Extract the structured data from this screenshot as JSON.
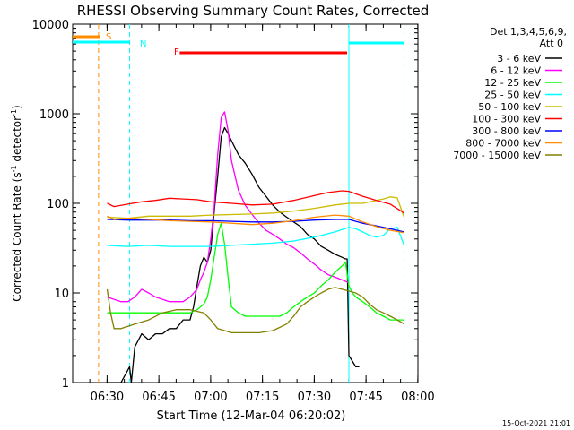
{
  "chart_data": {
    "type": "line",
    "title": "RHESSI Observing Summary Count Rates, Corrected",
    "xlabel": "Start Time (12-Mar-04 06:20:02)",
    "ylabel_parts": [
      "Corrected Count Rate (s",
      "-1",
      " detector",
      "-1",
      ")"
    ],
    "yscale": "log",
    "ylim": [
      1,
      10000
    ],
    "yticks": [
      1,
      10,
      100,
      1000,
      10000
    ],
    "ytick_labels": [
      "1",
      "10",
      "100",
      "1000",
      "10000"
    ],
    "x_unit": "minutes after 06:20:02",
    "xlim": [
      0,
      100
    ],
    "xticks": [
      9.97,
      24.97,
      39.97,
      54.97,
      69.97,
      84.97,
      99.97
    ],
    "xtick_labels": [
      "06:30",
      "06:45",
      "07:00",
      "07:15",
      "07:30",
      "07:45",
      "08:00"
    ],
    "legend": {
      "position": "top-right",
      "header1": "Det 1,3,4,5,6,9,",
      "header2": "Att 0"
    },
    "timestamp": "15-Oct-2021 21:01",
    "flags": [
      {
        "label": "S",
        "color": "#ff8c00",
        "start": 0,
        "end": 8
      },
      {
        "label": "N",
        "color": "#00ffff",
        "start": 0,
        "end": 16.5
      },
      {
        "label": "F",
        "color": "#ff0000",
        "start": 31,
        "end": 79.5
      },
      {
        "label": "",
        "color": "#00ffff",
        "start": 80,
        "end": 96
      }
    ],
    "vlines": [
      {
        "x": 7.5,
        "color": "#ff8c00",
        "style": "dashed"
      },
      {
        "x": 16.5,
        "color": "#00ffff",
        "style": "dashed"
      },
      {
        "x": 80,
        "color": "#00ffff",
        "style": "solid"
      },
      {
        "x": 96,
        "color": "#00ffff",
        "style": "dashed"
      }
    ],
    "series": [
      {
        "name": "3 - 6 keV",
        "color": "#000000",
        "x": [
          10,
          14,
          16.5,
          17,
          18,
          20,
          22,
          24,
          26,
          28,
          30,
          32,
          34,
          35,
          36,
          37,
          38,
          39,
          40,
          41,
          42,
          43,
          44,
          45,
          46,
          48,
          50,
          52,
          54,
          56,
          58,
          60,
          62,
          64,
          66,
          68,
          70,
          72,
          74,
          76,
          78,
          79,
          79.5,
          80,
          82,
          83,
          83.5
        ],
        "values": [
          1,
          1,
          1.5,
          1,
          2.5,
          3.5,
          3,
          3.5,
          3.5,
          4,
          4,
          5,
          5,
          7,
          12,
          20,
          25,
          22,
          30,
          80,
          200,
          550,
          700,
          600,
          500,
          350,
          280,
          210,
          150,
          120,
          95,
          80,
          70,
          62,
          55,
          45,
          40,
          33,
          30,
          27,
          25,
          24,
          24,
          2,
          1.5,
          1.5,
          null
        ]
      },
      {
        "name": "6 - 12 keV",
        "color": "#ff00ff",
        "x": [
          10,
          14,
          16,
          18,
          20,
          22,
          24,
          26,
          28,
          30,
          32,
          34,
          36,
          37,
          38,
          39,
          40,
          41,
          42,
          43,
          44,
          45,
          46,
          48,
          50,
          52,
          54,
          56,
          58,
          60,
          62,
          64,
          66,
          68,
          70,
          72,
          74,
          76,
          78,
          80
        ],
        "values": [
          9,
          8,
          8,
          9,
          11,
          10,
          9,
          8.5,
          8,
          8,
          8,
          9,
          11,
          14,
          17,
          22,
          40,
          90,
          350,
          900,
          1050,
          650,
          300,
          140,
          95,
          75,
          60,
          50,
          45,
          40,
          35,
          32,
          28,
          24,
          21,
          18,
          16,
          15,
          14,
          13
        ]
      },
      {
        "name": "12 - 25 keV",
        "color": "#00ff00",
        "x": [
          10,
          14,
          18,
          22,
          26,
          30,
          34,
          36,
          38,
          39,
          40,
          41,
          42,
          43,
          44,
          45,
          46,
          48,
          50,
          52,
          54,
          56,
          58,
          60,
          62,
          64,
          66,
          68,
          70,
          72,
          74,
          76,
          78,
          79,
          80,
          81,
          82,
          84,
          86,
          88,
          90,
          92,
          94,
          96
        ],
        "values": [
          6,
          6,
          6,
          6,
          6,
          6,
          6,
          6.5,
          7.5,
          9,
          14,
          25,
          45,
          60,
          35,
          15,
          7,
          6,
          5.5,
          5.5,
          5.5,
          5.5,
          5.5,
          5.5,
          6,
          7,
          8,
          9,
          10,
          12,
          14,
          17,
          20,
          22,
          12,
          10,
          9,
          8,
          7,
          6,
          5.5,
          5,
          5,
          5
        ]
      },
      {
        "name": "25 - 50 keV",
        "color": "#00ffff",
        "x": [
          10,
          16,
          22,
          28,
          34,
          40,
          46,
          52,
          58,
          64,
          70,
          76,
          80,
          82,
          84,
          86,
          88,
          90,
          92,
          94,
          96
        ],
        "values": [
          34,
          33,
          34,
          33,
          33,
          33,
          34,
          35,
          36,
          38,
          42,
          48,
          54,
          52,
          48,
          44,
          42,
          44,
          52,
          54,
          34
        ]
      },
      {
        "name": "50 - 100 keV",
        "color": "#ccbb00",
        "x": [
          10,
          16,
          22,
          28,
          34,
          40,
          46,
          52,
          58,
          64,
          70,
          76,
          80,
          84,
          88,
          90,
          92,
          94,
          96
        ],
        "values": [
          70,
          68,
          72,
          72,
          72,
          74,
          75,
          76,
          78,
          82,
          88,
          96,
          100,
          100,
          108,
          112,
          118,
          115,
          70
        ]
      },
      {
        "name": "100 - 300 keV",
        "color": "#ff0000",
        "x": [
          10,
          12,
          16,
          20,
          24,
          28,
          32,
          36,
          40,
          46,
          52,
          58,
          64,
          70,
          74,
          78,
          80,
          84,
          88,
          92,
          96
        ],
        "values": [
          100,
          92,
          98,
          104,
          108,
          114,
          112,
          110,
          104,
          100,
          96,
          98,
          108,
          122,
          132,
          138,
          136,
          120,
          108,
          98,
          78
        ]
      },
      {
        "name": "300 - 800 keV",
        "color": "#0000ff",
        "x": [
          10,
          16,
          22,
          28,
          34,
          40,
          46,
          52,
          58,
          64,
          70,
          76,
          80,
          84,
          88,
          92,
          96
        ],
        "values": [
          66,
          65,
          65,
          65,
          64,
          64,
          63,
          62,
          62,
          63,
          65,
          66,
          66,
          60,
          56,
          52,
          48
        ]
      },
      {
        "name": "800 - 7000 keV",
        "color": "#ff8c00",
        "x": [
          10,
          12,
          16,
          22,
          28,
          34,
          40,
          46,
          52,
          58,
          64,
          70,
          76,
          80,
          84,
          88,
          92,
          96
        ],
        "values": [
          72,
          66,
          68,
          66,
          64,
          63,
          62,
          60,
          58,
          60,
          64,
          70,
          74,
          72,
          62,
          55,
          50,
          47
        ]
      },
      {
        "name": "7000 - 15000 keV",
        "color": "#808000",
        "x": [
          10,
          11,
          12,
          14,
          18,
          22,
          26,
          30,
          34,
          38,
          40,
          42,
          44,
          46,
          50,
          54,
          58,
          62,
          64,
          66,
          68,
          70,
          72,
          74,
          76,
          78,
          80,
          82,
          84,
          86,
          88,
          90,
          92,
          94,
          96
        ],
        "values": [
          11,
          6,
          4,
          4,
          4.5,
          5,
          6,
          6.5,
          6.5,
          6,
          5,
          4,
          3.8,
          3.6,
          3.6,
          3.6,
          3.8,
          4.5,
          5.5,
          7,
          8,
          9,
          10,
          11,
          11.5,
          11,
          10.5,
          10,
          9,
          7.5,
          6.5,
          6,
          5.5,
          5,
          4.5
        ]
      }
    ]
  }
}
